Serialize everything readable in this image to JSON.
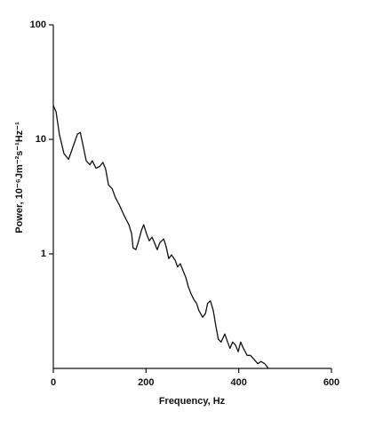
{
  "chart_data": {
    "type": "line",
    "x_label": "Frequency, Hz",
    "y_label": "Power, 10⁻⁶Jm⁻²s⁻¹Hz⁻¹",
    "log_y": true,
    "color": "#111111",
    "xlim": [
      0,
      600
    ],
    "xticks": [
      0,
      200,
      400,
      600
    ],
    "ylim": [
      0.1,
      100
    ],
    "yticks": [
      1,
      10,
      100
    ],
    "x": [
      0,
      6,
      13,
      23,
      33,
      42,
      52,
      58,
      63,
      71,
      79,
      84,
      92,
      100,
      107,
      113,
      119,
      127,
      134,
      144,
      153,
      163,
      169,
      172,
      178,
      184,
      190,
      195,
      201,
      207,
      213,
      218,
      224,
      230,
      238,
      243,
      249,
      255,
      263,
      268,
      274,
      280,
      286,
      291,
      297,
      303,
      309,
      314,
      322,
      328,
      333,
      339,
      345,
      351,
      356,
      362,
      370,
      376,
      381,
      387,
      393,
      399,
      404,
      410,
      418,
      425,
      433,
      441,
      448,
      456,
      464
    ],
    "values": [
      19.7,
      17.4,
      11.1,
      7.5,
      6.7,
      8.5,
      11.1,
      11.5,
      9.3,
      6.5,
      6.0,
      6.5,
      5.6,
      5.8,
      6.3,
      5.5,
      4.0,
      3.7,
      3.1,
      2.6,
      2.15,
      1.8,
      1.5,
      1.13,
      1.09,
      1.3,
      1.6,
      1.8,
      1.5,
      1.3,
      1.4,
      1.26,
      1.09,
      1.26,
      1.35,
      1.17,
      0.91,
      0.98,
      0.88,
      0.77,
      0.82,
      0.71,
      0.62,
      0.52,
      0.45,
      0.4,
      0.37,
      0.32,
      0.28,
      0.3,
      0.37,
      0.39,
      0.32,
      0.23,
      0.18,
      0.17,
      0.2,
      0.17,
      0.15,
      0.17,
      0.16,
      0.14,
      0.17,
      0.15,
      0.13,
      0.13,
      0.12,
      0.11,
      0.115,
      0.11,
      0.1
    ]
  }
}
